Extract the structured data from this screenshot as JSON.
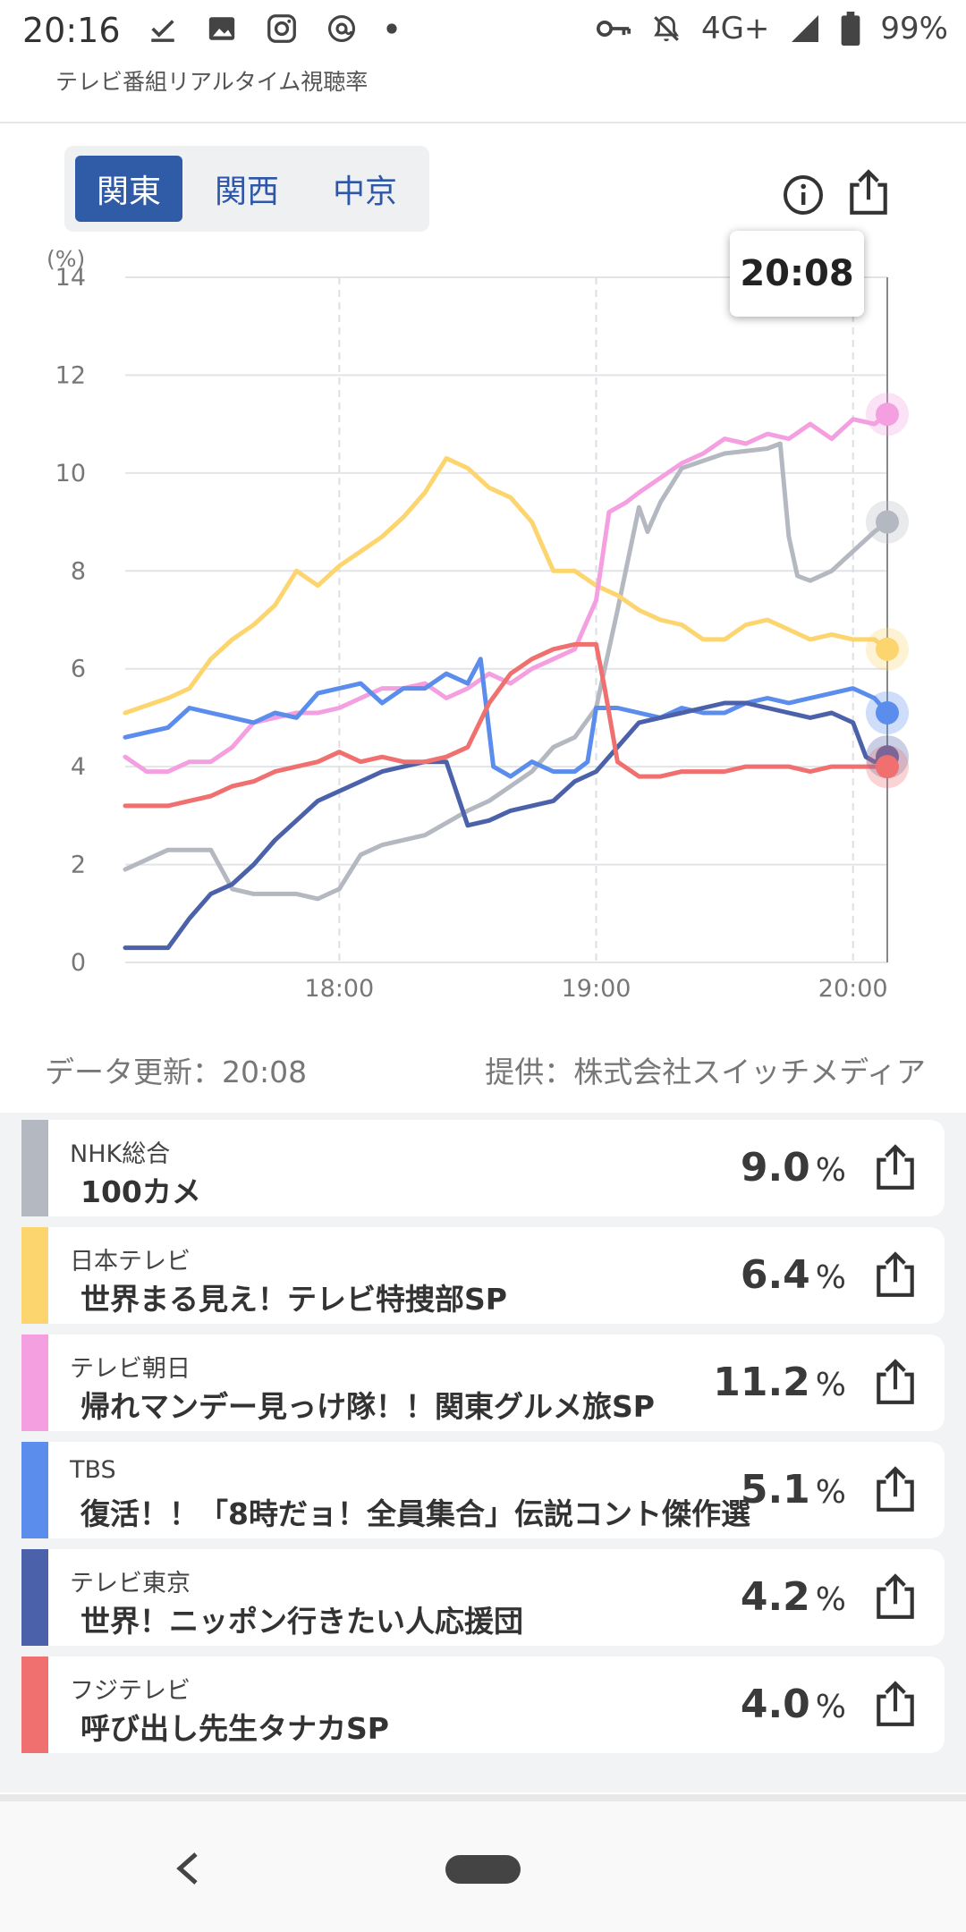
{
  "status_bar": {
    "time": "20:16",
    "network": "4G+",
    "battery": "99%"
  },
  "app": {
    "subtitle": "テレビ番組リアルタイム視聴率"
  },
  "regions": [
    {
      "label": "関東",
      "active": true
    },
    {
      "label": "関西",
      "active": false
    },
    {
      "label": "中京",
      "active": false
    }
  ],
  "tooltip": {
    "time": "20:08"
  },
  "meta": {
    "updated": "データ更新：20:08",
    "provider": "提供：株式会社スイッチメディア"
  },
  "chart_data": {
    "type": "line",
    "ylabel": "(%)",
    "ylim": [
      0,
      14
    ],
    "y_ticks": [
      "0",
      "2",
      "4",
      "6",
      "8",
      "10",
      "12",
      "14"
    ],
    "x_ticks": [
      "18:00",
      "19:00",
      "20:00"
    ],
    "x_range_minutes": [
      1030,
      1208
    ],
    "grid": true,
    "series": [
      {
        "name": "NHK総合",
        "color": "#b4b8c0",
        "points": [
          [
            1030,
            1.9
          ],
          [
            1040,
            2.3
          ],
          [
            1050,
            2.3
          ],
          [
            1055,
            1.5
          ],
          [
            1060,
            1.4
          ],
          [
            1070,
            1.4
          ],
          [
            1075,
            1.3
          ],
          [
            1080,
            1.5
          ],
          [
            1085,
            2.2
          ],
          [
            1090,
            2.4
          ],
          [
            1100,
            2.6
          ],
          [
            1110,
            3.1
          ],
          [
            1115,
            3.3
          ],
          [
            1120,
            3.6
          ],
          [
            1125,
            3.9
          ],
          [
            1130,
            4.4
          ],
          [
            1135,
            4.6
          ],
          [
            1140,
            5.2
          ],
          [
            1145,
            7.2
          ],
          [
            1150,
            9.3
          ],
          [
            1152,
            8.8
          ],
          [
            1155,
            9.4
          ],
          [
            1160,
            10.1
          ],
          [
            1170,
            10.4
          ],
          [
            1180,
            10.5
          ],
          [
            1183,
            10.6
          ],
          [
            1185,
            8.7
          ],
          [
            1187,
            7.9
          ],
          [
            1190,
            7.8
          ],
          [
            1195,
            8.0
          ],
          [
            1200,
            8.4
          ],
          [
            1205,
            8.8
          ],
          [
            1208,
            9.0
          ]
        ]
      },
      {
        "name": "日本テレビ",
        "color": "#fdd56f",
        "points": [
          [
            1030,
            5.1
          ],
          [
            1040,
            5.4
          ],
          [
            1045,
            5.6
          ],
          [
            1050,
            6.2
          ],
          [
            1055,
            6.6
          ],
          [
            1060,
            6.9
          ],
          [
            1065,
            7.3
          ],
          [
            1070,
            8.0
          ],
          [
            1075,
            7.7
          ],
          [
            1080,
            8.1
          ],
          [
            1085,
            8.4
          ],
          [
            1090,
            8.7
          ],
          [
            1095,
            9.1
          ],
          [
            1100,
            9.6
          ],
          [
            1105,
            10.3
          ],
          [
            1110,
            10.1
          ],
          [
            1115,
            9.7
          ],
          [
            1120,
            9.5
          ],
          [
            1125,
            9.0
          ],
          [
            1130,
            8.0
          ],
          [
            1135,
            8.0
          ],
          [
            1140,
            7.7
          ],
          [
            1145,
            7.5
          ],
          [
            1150,
            7.2
          ],
          [
            1155,
            7.0
          ],
          [
            1160,
            6.9
          ],
          [
            1165,
            6.6
          ],
          [
            1170,
            6.6
          ],
          [
            1175,
            6.9
          ],
          [
            1180,
            7.0
          ],
          [
            1185,
            6.8
          ],
          [
            1190,
            6.6
          ],
          [
            1195,
            6.7
          ],
          [
            1200,
            6.6
          ],
          [
            1205,
            6.6
          ],
          [
            1208,
            6.4
          ]
        ]
      },
      {
        "name": "テレビ朝日",
        "color": "#f4a0e0",
        "points": [
          [
            1030,
            4.2
          ],
          [
            1035,
            3.9
          ],
          [
            1040,
            3.9
          ],
          [
            1045,
            4.1
          ],
          [
            1050,
            4.1
          ],
          [
            1055,
            4.4
          ],
          [
            1060,
            4.9
          ],
          [
            1065,
            5.0
          ],
          [
            1070,
            5.1
          ],
          [
            1075,
            5.1
          ],
          [
            1080,
            5.2
          ],
          [
            1085,
            5.4
          ],
          [
            1090,
            5.6
          ],
          [
            1095,
            5.6
          ],
          [
            1100,
            5.7
          ],
          [
            1105,
            5.4
          ],
          [
            1110,
            5.6
          ],
          [
            1115,
            5.9
          ],
          [
            1120,
            5.7
          ],
          [
            1125,
            6.0
          ],
          [
            1130,
            6.2
          ],
          [
            1135,
            6.4
          ],
          [
            1140,
            7.4
          ],
          [
            1143,
            9.2
          ],
          [
            1147,
            9.4
          ],
          [
            1150,
            9.6
          ],
          [
            1155,
            9.9
          ],
          [
            1160,
            10.2
          ],
          [
            1165,
            10.4
          ],
          [
            1170,
            10.7
          ],
          [
            1175,
            10.6
          ],
          [
            1180,
            10.8
          ],
          [
            1185,
            10.7
          ],
          [
            1190,
            11.0
          ],
          [
            1195,
            10.7
          ],
          [
            1200,
            11.1
          ],
          [
            1205,
            11.0
          ],
          [
            1208,
            11.2
          ]
        ]
      },
      {
        "name": "TBS",
        "color": "#5b8ded",
        "points": [
          [
            1030,
            4.6
          ],
          [
            1040,
            4.8
          ],
          [
            1045,
            5.2
          ],
          [
            1050,
            5.1
          ],
          [
            1055,
            5.0
          ],
          [
            1060,
            4.9
          ],
          [
            1065,
            5.1
          ],
          [
            1070,
            5.0
          ],
          [
            1075,
            5.5
          ],
          [
            1080,
            5.6
          ],
          [
            1085,
            5.7
          ],
          [
            1090,
            5.3
          ],
          [
            1095,
            5.6
          ],
          [
            1100,
            5.6
          ],
          [
            1105,
            5.9
          ],
          [
            1110,
            5.7
          ],
          [
            1113,
            6.2
          ],
          [
            1116,
            4.0
          ],
          [
            1120,
            3.8
          ],
          [
            1125,
            4.1
          ],
          [
            1130,
            3.9
          ],
          [
            1135,
            3.9
          ],
          [
            1138,
            4.1
          ],
          [
            1140,
            5.2
          ],
          [
            1145,
            5.2
          ],
          [
            1150,
            5.1
          ],
          [
            1155,
            5.0
          ],
          [
            1160,
            5.2
          ],
          [
            1165,
            5.1
          ],
          [
            1170,
            5.1
          ],
          [
            1175,
            5.3
          ],
          [
            1180,
            5.4
          ],
          [
            1185,
            5.3
          ],
          [
            1190,
            5.4
          ],
          [
            1195,
            5.5
          ],
          [
            1200,
            5.6
          ],
          [
            1205,
            5.4
          ],
          [
            1208,
            5.1
          ]
        ]
      },
      {
        "name": "テレビ東京",
        "color": "#4b62aa",
        "points": [
          [
            1030,
            0.3
          ],
          [
            1040,
            0.3
          ],
          [
            1045,
            0.9
          ],
          [
            1050,
            1.4
          ],
          [
            1055,
            1.6
          ],
          [
            1060,
            2.0
          ],
          [
            1065,
            2.5
          ],
          [
            1070,
            2.9
          ],
          [
            1075,
            3.3
          ],
          [
            1080,
            3.5
          ],
          [
            1085,
            3.7
          ],
          [
            1090,
            3.9
          ],
          [
            1095,
            4.0
          ],
          [
            1100,
            4.1
          ],
          [
            1105,
            4.1
          ],
          [
            1110,
            2.8
          ],
          [
            1115,
            2.9
          ],
          [
            1120,
            3.1
          ],
          [
            1125,
            3.2
          ],
          [
            1130,
            3.3
          ],
          [
            1135,
            3.7
          ],
          [
            1140,
            3.9
          ],
          [
            1145,
            4.4
          ],
          [
            1150,
            4.9
          ],
          [
            1155,
            5.0
          ],
          [
            1160,
            5.1
          ],
          [
            1165,
            5.2
          ],
          [
            1170,
            5.3
          ],
          [
            1175,
            5.3
          ],
          [
            1180,
            5.2
          ],
          [
            1185,
            5.1
          ],
          [
            1190,
            5.0
          ],
          [
            1195,
            5.1
          ],
          [
            1200,
            4.9
          ],
          [
            1203,
            4.2
          ],
          [
            1205,
            4.1
          ],
          [
            1208,
            4.2
          ]
        ]
      },
      {
        "name": "フジテレビ",
        "color": "#f07070",
        "points": [
          [
            1030,
            3.2
          ],
          [
            1040,
            3.2
          ],
          [
            1045,
            3.3
          ],
          [
            1050,
            3.4
          ],
          [
            1055,
            3.6
          ],
          [
            1060,
            3.7
          ],
          [
            1065,
            3.9
          ],
          [
            1070,
            4.0
          ],
          [
            1075,
            4.1
          ],
          [
            1080,
            4.3
          ],
          [
            1085,
            4.1
          ],
          [
            1090,
            4.2
          ],
          [
            1095,
            4.1
          ],
          [
            1100,
            4.1
          ],
          [
            1105,
            4.2
          ],
          [
            1110,
            4.4
          ],
          [
            1115,
            5.3
          ],
          [
            1120,
            5.9
          ],
          [
            1125,
            6.2
          ],
          [
            1130,
            6.4
          ],
          [
            1135,
            6.5
          ],
          [
            1140,
            6.5
          ],
          [
            1142,
            5.6
          ],
          [
            1145,
            4.1
          ],
          [
            1150,
            3.8
          ],
          [
            1155,
            3.8
          ],
          [
            1160,
            3.9
          ],
          [
            1165,
            3.9
          ],
          [
            1170,
            3.9
          ],
          [
            1175,
            4.0
          ],
          [
            1180,
            4.0
          ],
          [
            1185,
            4.0
          ],
          [
            1190,
            3.9
          ],
          [
            1195,
            4.0
          ],
          [
            1200,
            4.0
          ],
          [
            1205,
            4.0
          ],
          [
            1208,
            4.0
          ]
        ]
      }
    ]
  },
  "programs": [
    {
      "station": "NHK総合",
      "title": "100カメ",
      "rating": "9.0",
      "unit": "%",
      "color": "#b4b8c0"
    },
    {
      "station": "日本テレビ",
      "title": "世界まる見え！テレビ特捜部SP",
      "rating": "6.4",
      "unit": "%",
      "color": "#fdd56f"
    },
    {
      "station": "テレビ朝日",
      "title": "帰れマンデー見っけ隊！！関東グルメ旅SP",
      "rating": "11.2",
      "unit": "%",
      "color": "#f4a0e0"
    },
    {
      "station": "TBS",
      "title": "復活！！「8時だョ！全員集合」伝説コント傑作選",
      "rating": "5.1",
      "unit": "%",
      "color": "#5b8ded"
    },
    {
      "station": "テレビ東京",
      "title": "世界！ニッポン行きたい人応援団",
      "rating": "4.2",
      "unit": "%",
      "color": "#4b62aa"
    },
    {
      "station": "フジテレビ",
      "title": "呼び出し先生タナカSP",
      "rating": "4.0",
      "unit": "%",
      "color": "#f07070"
    }
  ]
}
